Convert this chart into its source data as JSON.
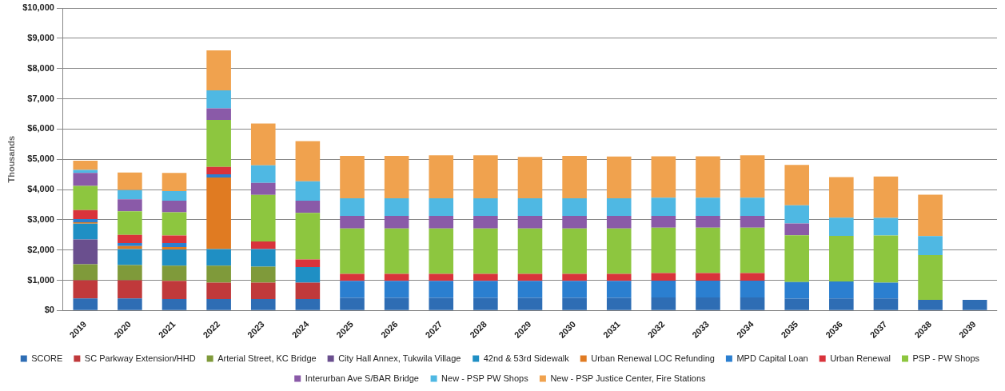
{
  "chart_data": {
    "type": "bar",
    "stacked": true,
    "ylabel": "Thousands",
    "categories": [
      "2019",
      "2020",
      "2021",
      "2022",
      "2023",
      "2024",
      "2025",
      "2026",
      "2027",
      "2028",
      "2029",
      "2030",
      "2031",
      "2032",
      "2033",
      "2034",
      "2035",
      "2036",
      "2037",
      "2038",
      "2039"
    ],
    "ylim": [
      0,
      10000
    ],
    "yticks": [
      {
        "value": 0,
        "label": "$0"
      },
      {
        "value": 1000,
        "label": "$1,000"
      },
      {
        "value": 2000,
        "label": "$2,000"
      },
      {
        "value": 3000,
        "label": "$3,000"
      },
      {
        "value": 4000,
        "label": "$4,000"
      },
      {
        "value": 5000,
        "label": "$5,000"
      },
      {
        "value": 6000,
        "label": "$6,000"
      },
      {
        "value": 7000,
        "label": "$7,000"
      },
      {
        "value": 8000,
        "label": "$8,000"
      },
      {
        "value": 9000,
        "label": "$9,000"
      },
      {
        "value": 10000,
        "label": "$10,000"
      }
    ],
    "grid": "y",
    "legend": "bottom",
    "series": [
      {
        "name": "SCORE",
        "color": "#2e6db4",
        "values": [
          400,
          400,
          380,
          380,
          380,
          380,
          420,
          420,
          420,
          420,
          420,
          420,
          420,
          430,
          430,
          430,
          390,
          400,
          400,
          350,
          350
        ]
      },
      {
        "name": "SC Parkway Extension/HHD",
        "color": "#c0393b",
        "values": [
          600,
          600,
          600,
          540,
          540,
          540,
          0,
          0,
          0,
          0,
          0,
          0,
          0,
          0,
          0,
          0,
          0,
          0,
          0,
          0,
          0
        ]
      },
      {
        "name": "Arterial Street, KC Bridge",
        "color": "#7f9a3a",
        "values": [
          530,
          500,
          500,
          560,
          530,
          0,
          0,
          0,
          0,
          0,
          0,
          0,
          0,
          0,
          0,
          0,
          0,
          0,
          0,
          0,
          0
        ]
      },
      {
        "name": "City Hall Annex, Tukwila Village",
        "color": "#6a4f8e",
        "values": [
          820,
          0,
          0,
          0,
          0,
          0,
          0,
          0,
          0,
          0,
          0,
          0,
          0,
          0,
          0,
          0,
          0,
          0,
          0,
          0,
          0
        ]
      },
      {
        "name": "42nd & 53rd Sidewalk",
        "color": "#1f8fc4",
        "values": [
          520,
          530,
          540,
          550,
          580,
          520,
          0,
          0,
          0,
          0,
          0,
          0,
          0,
          0,
          0,
          0,
          0,
          0,
          0,
          0,
          0
        ]
      },
      {
        "name": "Urban Renewal LOC Refunding",
        "color": "#e07b22",
        "values": [
          50,
          100,
          80,
          2370,
          0,
          0,
          0,
          0,
          0,
          0,
          0,
          0,
          0,
          0,
          0,
          0,
          0,
          0,
          0,
          0,
          0
        ]
      },
      {
        "name": "MPD Capital Loan",
        "color": "#2b7fd0",
        "values": [
          100,
          100,
          130,
          100,
          0,
          0,
          560,
          560,
          560,
          560,
          560,
          560,
          560,
          560,
          560,
          560,
          550,
          560,
          520,
          0,
          0
        ]
      },
      {
        "name": "Urban Renewal",
        "color": "#d9333b",
        "values": [
          300,
          270,
          250,
          250,
          250,
          250,
          230,
          230,
          230,
          230,
          230,
          230,
          230,
          250,
          250,
          250,
          0,
          0,
          0,
          0,
          0
        ]
      },
      {
        "name": "PSP - PW Shops",
        "color": "#8dc63f",
        "values": [
          800,
          780,
          770,
          1550,
          1540,
          1540,
          1500,
          1500,
          1500,
          1500,
          1500,
          1500,
          1500,
          1500,
          1500,
          1500,
          1550,
          1510,
          1560,
          1480,
          0
        ]
      },
      {
        "name": "Interurban Ave S/BAR Bridge",
        "color": "#8a5aa8",
        "values": [
          430,
          400,
          380,
          380,
          400,
          400,
          420,
          420,
          420,
          420,
          420,
          420,
          420,
          390,
          390,
          390,
          390,
          0,
          0,
          0,
          0
        ]
      },
      {
        "name": "New - PSP PW Shops",
        "color": "#4fb8e3",
        "values": [
          100,
          300,
          320,
          600,
          580,
          640,
          580,
          580,
          580,
          580,
          580,
          580,
          580,
          600,
          600,
          600,
          600,
          600,
          580,
          630,
          0
        ]
      },
      {
        "name": "New - PSP Justice Center, Fire Stations",
        "color": "#f0a24e",
        "values": [
          300,
          580,
          600,
          1320,
          1380,
          1330,
          1400,
          1400,
          1420,
          1420,
          1370,
          1400,
          1380,
          1370,
          1370,
          1400,
          1330,
          1340,
          1370,
          1370,
          0
        ]
      }
    ]
  }
}
